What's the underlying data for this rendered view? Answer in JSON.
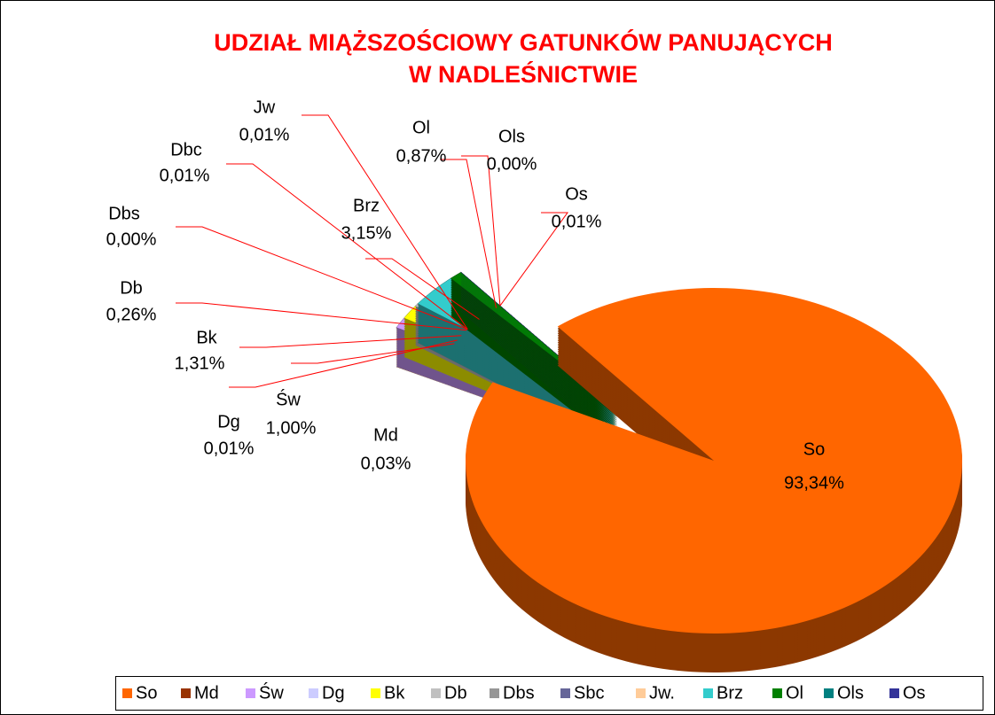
{
  "chart_data": {
    "type": "pie",
    "title": [
      "UDZIAŁ MIĄŻSZOŚCIOWY GATUNKÓW PANUJĄCYCH",
      "W NADLEŚNICTWIE"
    ],
    "categories": [
      "So",
      "Md",
      "Św",
      "Dg",
      "Bk",
      "Db",
      "Dbs",
      "Sbc",
      "Jw.",
      "Brz",
      "Ol",
      "Ols",
      "Os"
    ],
    "labels": [
      "So",
      "Md",
      "Św",
      "Dg",
      "Bk",
      "Db",
      "Dbs",
      "Dbc",
      "Jw",
      "Brz",
      "Ol",
      "Ols",
      "Os"
    ],
    "values": [
      93.34,
      0.03,
      1.0,
      0.01,
      1.31,
      0.26,
      0.0,
      0.01,
      0.01,
      3.15,
      0.87,
      0.0,
      0.01
    ],
    "value_labels": [
      "93,34%",
      "0,03%",
      "1,00%",
      "0,01%",
      "1,31%",
      "0,26%",
      "0,00%",
      "0,01%",
      "0,01%",
      "3,15%",
      "0,87%",
      "0,00%",
      "0,01%"
    ],
    "colors": [
      "#ff6600",
      "#993300",
      "#cc99ff",
      "#ccccff",
      "#ffff00",
      "#c0c0c0",
      "#969696",
      "#666699",
      "#ffcc99",
      "#33cccc",
      "#008000",
      "#008080",
      "#333399"
    ],
    "legend": "bottom"
  }
}
